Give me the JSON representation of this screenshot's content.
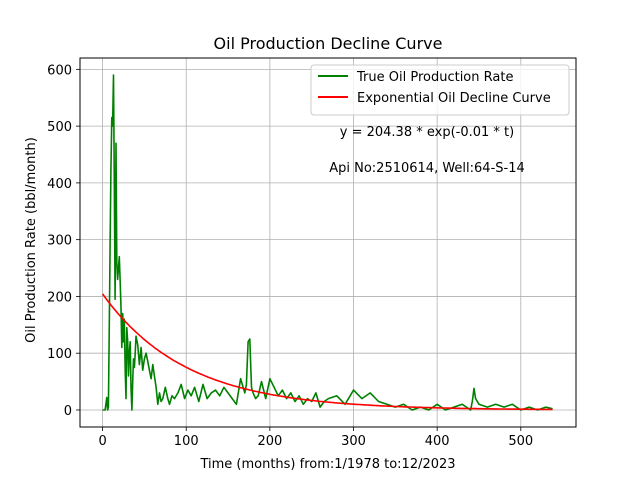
{
  "chart_data": {
    "type": "line",
    "title": "Oil Production Decline Curve",
    "xlabel": "Time (months) from:1/1978 to:12/2023",
    "ylabel": "Oil Production Rate (bbl/month)",
    "xlim": [
      -27,
      566
    ],
    "ylim": [
      -30,
      620
    ],
    "xticks": [
      0,
      100,
      200,
      300,
      400,
      500
    ],
    "yticks": [
      0,
      100,
      200,
      300,
      400,
      500,
      600
    ],
    "grid": true,
    "legend_position": "top-right",
    "annotations": [
      "y = 204.38 * exp(-0.01 * t)",
      "Api No:2510614, Well:64-S-14"
    ],
    "series": [
      {
        "name": "True Oil Production Rate",
        "color": "#008000",
        "kind": "observed",
        "x": [
          0,
          3,
          5,
          6,
          7,
          8,
          9,
          10,
          11,
          12,
          13,
          14,
          15,
          16,
          17,
          18,
          19,
          20,
          21,
          22,
          23,
          24,
          25,
          26,
          27,
          28,
          29,
          30,
          31,
          32,
          33,
          34,
          35,
          36,
          37,
          38,
          39,
          40,
          42,
          44,
          46,
          48,
          50,
          52,
          54,
          56,
          58,
          60,
          62,
          64,
          66,
          68,
          70,
          72,
          75,
          78,
          80,
          83,
          86,
          90,
          94,
          98,
          102,
          106,
          110,
          115,
          120,
          125,
          130,
          135,
          140,
          145,
          150,
          155,
          160,
          165,
          170,
          172,
          174,
          176,
          178,
          180,
          183,
          186,
          190,
          195,
          200,
          205,
          210,
          215,
          220,
          225,
          230,
          235,
          240,
          245,
          250,
          255,
          260,
          265,
          270,
          280,
          290,
          300,
          310,
          320,
          330,
          340,
          350,
          360,
          370,
          380,
          390,
          400,
          410,
          420,
          430,
          440,
          442,
          444,
          446,
          450,
          460,
          470,
          480,
          490,
          500,
          510,
          520,
          530,
          538
        ],
        "y": [
          0,
          0,
          22,
          0,
          5,
          150,
          290,
          420,
          515,
          500,
          590,
          400,
          195,
          470,
          260,
          230,
          250,
          270,
          230,
          180,
          110,
          170,
          120,
          160,
          70,
          20,
          145,
          120,
          60,
          100,
          120,
          40,
          0,
          50,
          90,
          75,
          100,
          130,
          115,
          80,
          110,
          70,
          90,
          100,
          85,
          70,
          55,
          80,
          60,
          40,
          10,
          30,
          15,
          20,
          40,
          20,
          10,
          25,
          20,
          30,
          45,
          20,
          35,
          25,
          40,
          15,
          45,
          20,
          30,
          35,
          25,
          40,
          30,
          20,
          10,
          55,
          30,
          45,
          120,
          125,
          40,
          30,
          20,
          25,
          50,
          20,
          55,
          40,
          25,
          35,
          20,
          30,
          15,
          25,
          10,
          20,
          15,
          30,
          5,
          15,
          20,
          25,
          10,
          35,
          20,
          30,
          15,
          10,
          5,
          10,
          0,
          5,
          0,
          10,
          0,
          5,
          10,
          0,
          15,
          38,
          20,
          10,
          5,
          10,
          5,
          10,
          0,
          5,
          0,
          5,
          2
        ]
      },
      {
        "name": "Exponential Oil Decline Curve",
        "color": "#ff0000",
        "kind": "fit",
        "equation": "y = 204.38 * exp(-0.01 * t)",
        "a": 204.38,
        "b": 0.01,
        "t_range": [
          0,
          538
        ]
      }
    ]
  }
}
